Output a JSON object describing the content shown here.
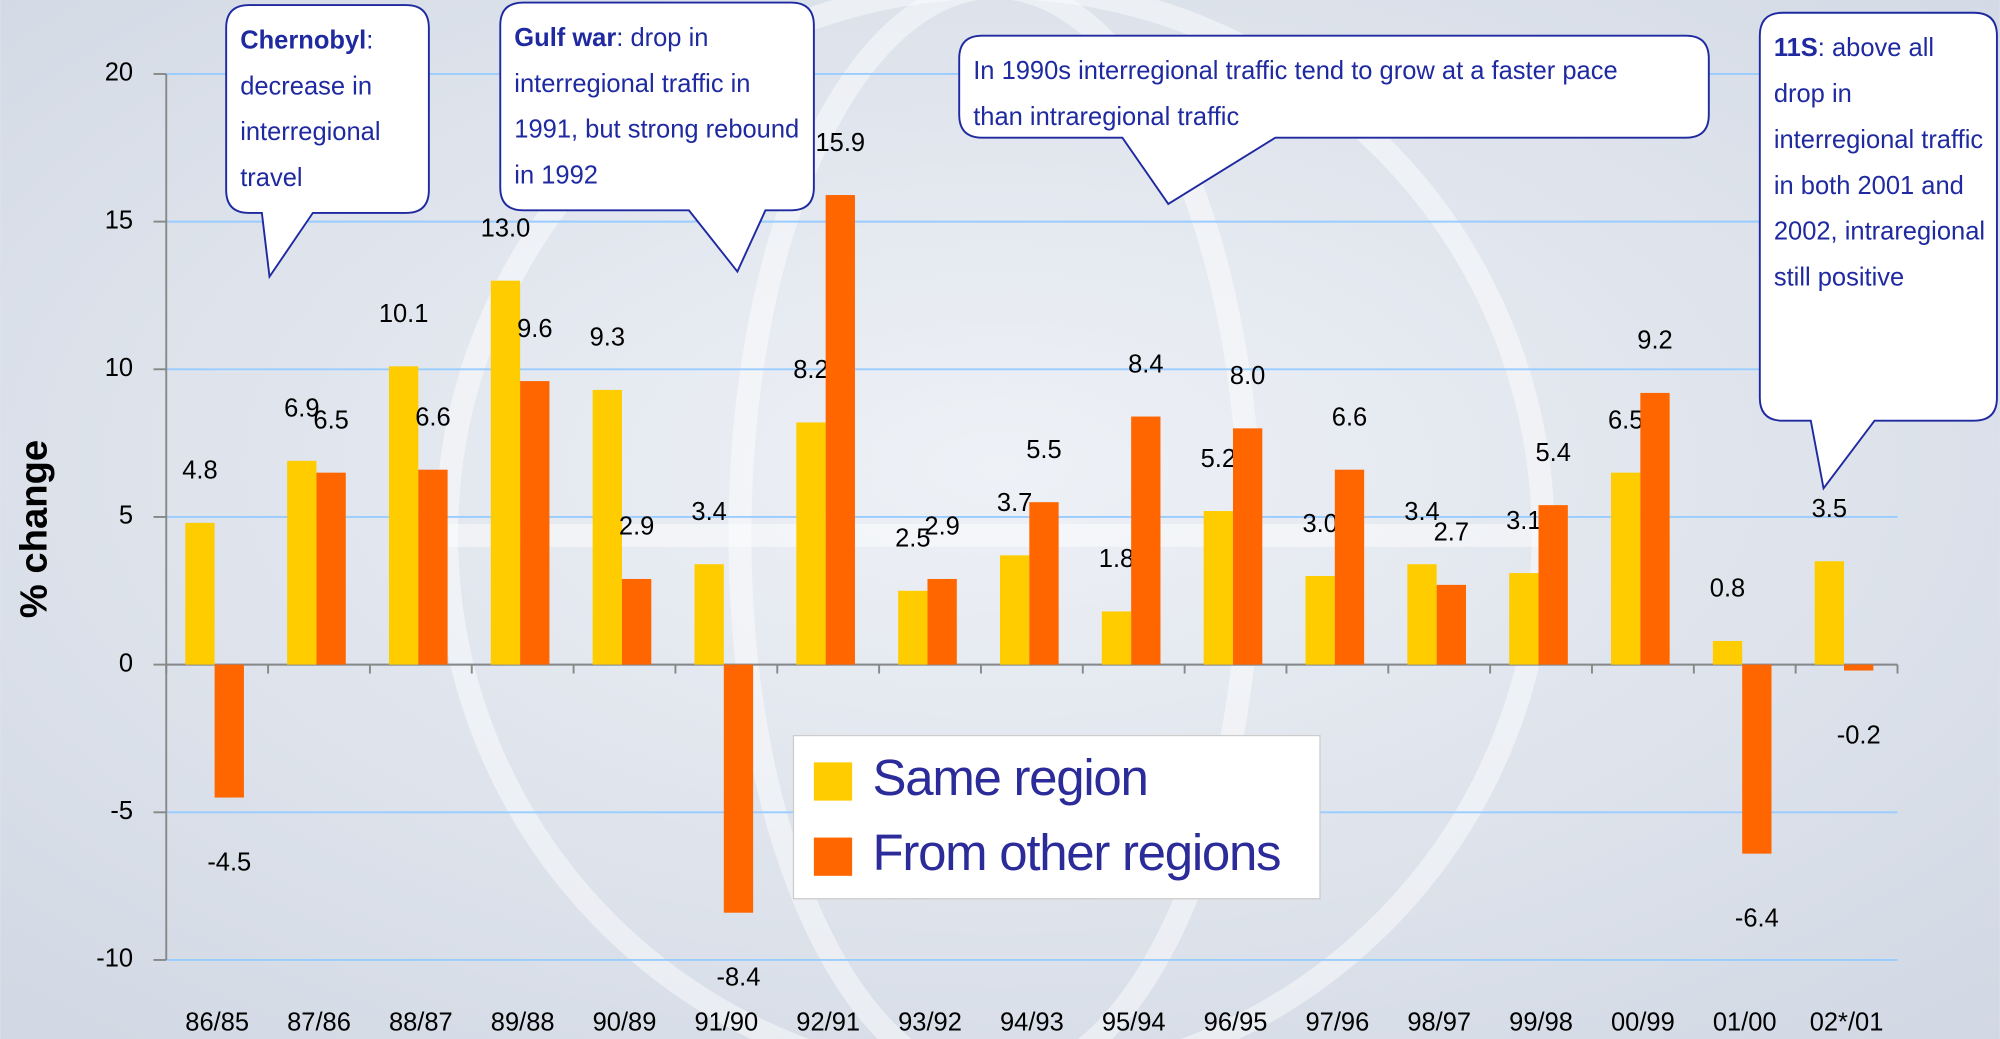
{
  "chart_data": {
    "type": "bar",
    "y_axis_label": "% change",
    "categories": [
      "86/85",
      "87/86",
      "88/87",
      "89/88",
      "90/89",
      "91/90",
      "92/91",
      "93/92",
      "94/93",
      "95/94",
      "96/95",
      "97/96",
      "98/97",
      "99/98",
      "00/99",
      "01/00",
      "02*/01"
    ],
    "series": [
      {
        "name": "Same region",
        "color": "#ffcc00",
        "values": [
          4.8,
          6.9,
          10.1,
          13.0,
          9.3,
          3.4,
          8.2,
          2.5,
          3.7,
          1.8,
          5.2,
          3.0,
          3.4,
          3.1,
          6.5,
          0.8,
          3.5
        ],
        "value_labels": [
          "4.8",
          "6.9",
          "10.1",
          "13.0",
          "9.3",
          "3.4",
          "8.2",
          "2.5",
          "3.7",
          "1.8",
          "5.2",
          "3.0",
          "3.4",
          "3.1",
          "6.5",
          "0.8",
          "3.5"
        ]
      },
      {
        "name": "From other regions",
        "color": "#ff6600",
        "values": [
          -4.5,
          6.5,
          6.6,
          9.6,
          2.9,
          -8.4,
          15.9,
          2.9,
          5.5,
          8.4,
          8.0,
          6.6,
          2.7,
          5.4,
          9.2,
          -6.4,
          -0.2
        ],
        "value_labels": [
          "-4.5",
          "6.5",
          "6.6",
          "9.6",
          "2.9",
          "-8.4",
          "15.9",
          "2.9",
          "5.5",
          "8.4",
          "8.0",
          "6.6",
          "2.7",
          "5.4",
          "9.2",
          "-6.4",
          "-0.2"
        ]
      }
    ],
    "ylim": [
      -10,
      20
    ],
    "yticks": [
      -10,
      -5,
      0,
      5,
      10,
      15,
      20
    ],
    "grid": true,
    "legend": "bottom-center",
    "annotations": [
      {
        "bold": "Chernobyl",
        "text": ": decrease in interregional travel"
      },
      {
        "bold": "Gulf war",
        "text": ": drop in interregional traffic in  1991, but strong rebound in 1992"
      },
      {
        "text": "In 1990s interregional traffic tend to grow at a faster pace than intraregional traffic"
      },
      {
        "bold": "11S",
        "text": ": above all drop in interregional traffic in both 2001 and 2002, intraregional still positive"
      }
    ]
  }
}
